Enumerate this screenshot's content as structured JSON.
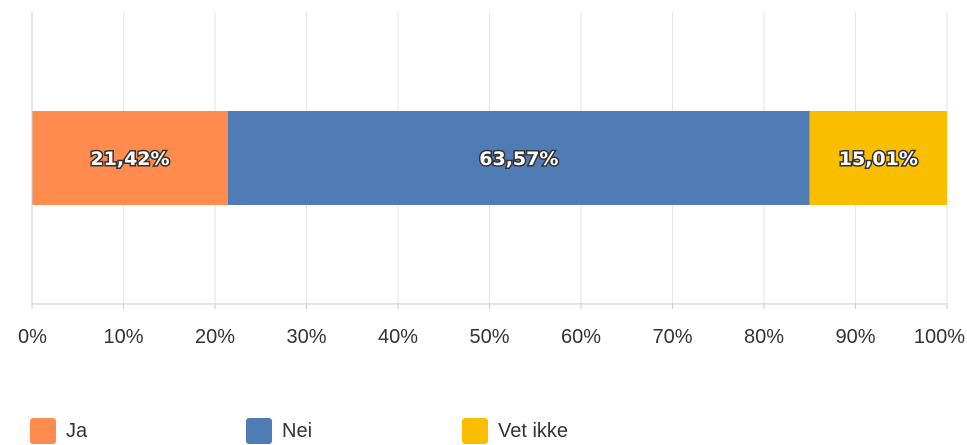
{
  "chart_data": {
    "type": "bar",
    "orientation": "horizontal",
    "stacked": true,
    "categories": [
      ""
    ],
    "series": [
      {
        "name": "Ja",
        "values": [
          21.42
        ],
        "label": "21,42%",
        "color": "#FF8B4F"
      },
      {
        "name": "Nei",
        "values": [
          63.57
        ],
        "label": "63,57%",
        "color": "#507CB6"
      },
      {
        "name": "Vet ikke",
        "values": [
          15.01
        ],
        "label": "15,01%",
        "color": "#F9BE00"
      }
    ],
    "xlim": [
      0,
      100
    ],
    "xticks": [
      0,
      10,
      20,
      30,
      40,
      50,
      60,
      70,
      80,
      90,
      100
    ],
    "xtick_labels": [
      "0%",
      "10%",
      "20%",
      "30%",
      "40%",
      "50%",
      "60%",
      "70%",
      "80%",
      "90%",
      "100%"
    ],
    "grid": true,
    "legend_position": "bottom-left"
  }
}
